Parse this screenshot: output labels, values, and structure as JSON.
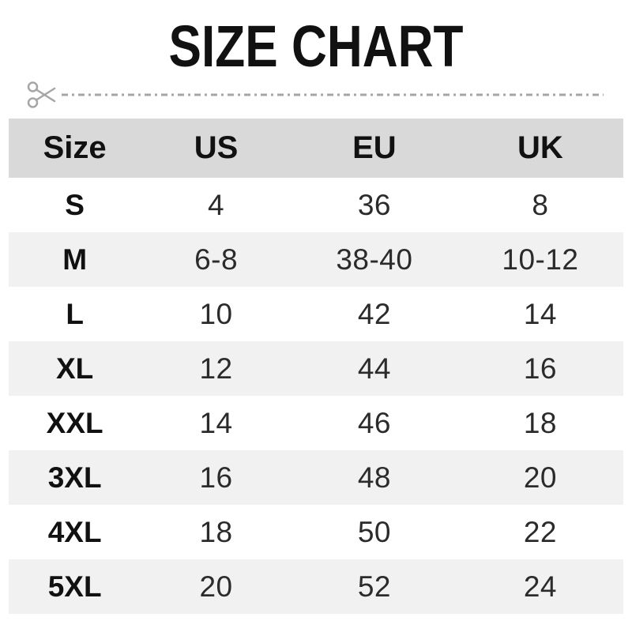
{
  "title": "SIZE CHART",
  "chart_data": {
    "type": "table",
    "title": "SIZE CHART",
    "columns": [
      "Size",
      "US",
      "EU",
      "UK"
    ],
    "rows": [
      [
        "S",
        "4",
        "36",
        "8"
      ],
      [
        "M",
        "6-8",
        "38-40",
        "10-12"
      ],
      [
        "L",
        "10",
        "42",
        "14"
      ],
      [
        "XL",
        "12",
        "44",
        "16"
      ],
      [
        "XXL",
        "14",
        "46",
        "18"
      ],
      [
        "3XL",
        "16",
        "48",
        "20"
      ],
      [
        "4XL",
        "18",
        "50",
        "22"
      ],
      [
        "5XL",
        "20",
        "52",
        "24"
      ]
    ],
    "layout": {
      "header_row_shaded": true,
      "alternating_stripes": "rows M, XL, 3XL, 5XL shaded",
      "cut_line_above_table": true
    }
  },
  "icons": {
    "cut_line_icon": "scissors"
  },
  "colors": {
    "background": "#ffffff",
    "header_bg": "#d9d9d9",
    "stripe_bg": "#f1f1f1",
    "text": "#111111",
    "number_text": "#2b2b2b",
    "cut_line": "#a6a6a6"
  }
}
